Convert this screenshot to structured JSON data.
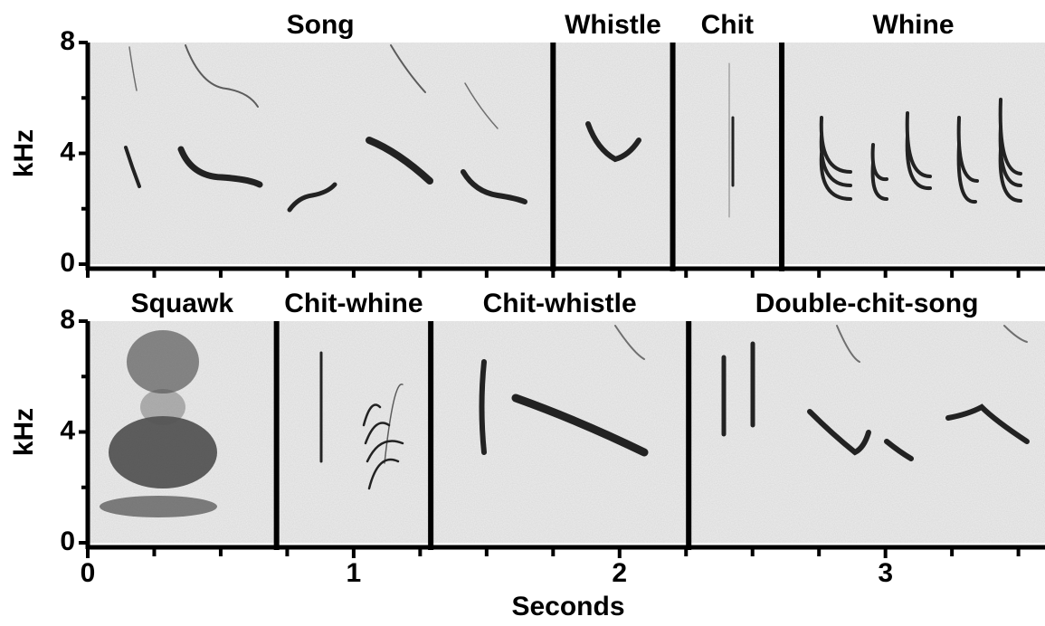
{
  "chart_data": [
    {
      "type": "spectrogram",
      "ylabel": "kHz",
      "xlim": [
        0,
        3.6
      ],
      "ylim": [
        0,
        8
      ],
      "yticks": [
        0,
        4,
        8
      ],
      "yminorticks": [
        2,
        6
      ],
      "xminorticks": [
        0,
        0.25,
        0.5,
        0.75,
        1,
        1.25,
        1.5,
        1.75,
        2,
        2.25,
        2.5,
        2.75,
        3,
        3.25,
        3.5
      ],
      "segments": [
        {
          "name": "Song",
          "start": 0,
          "end": 1.75
        },
        {
          "name": "Whistle",
          "start": 1.75,
          "end": 2.2
        },
        {
          "name": "Chit",
          "start": 2.2,
          "end": 2.61
        },
        {
          "name": "Whine",
          "start": 2.61,
          "end": 3.6
        }
      ]
    },
    {
      "type": "spectrogram",
      "ylabel": "kHz",
      "xlabel": "Seconds",
      "xlim": [
        0,
        3.6
      ],
      "ylim": [
        0,
        8
      ],
      "yticks": [
        0,
        4,
        8
      ],
      "yminorticks": [
        2,
        6
      ],
      "xticks": [
        0,
        1,
        2,
        3
      ],
      "xminorticks": [
        0.25,
        0.5,
        0.75,
        1.25,
        1.5,
        1.75,
        2.25,
        2.5,
        2.75,
        3.25,
        3.5
      ],
      "segments": [
        {
          "name": "Squawk",
          "start": 0,
          "end": 0.71
        },
        {
          "name": "Chit-whine",
          "start": 0.71,
          "end": 1.29
        },
        {
          "name": "Chit-whistle",
          "start": 1.29,
          "end": 2.26
        },
        {
          "name": "Double-chit-song",
          "start": 2.26,
          "end": 3.6
        }
      ]
    }
  ]
}
